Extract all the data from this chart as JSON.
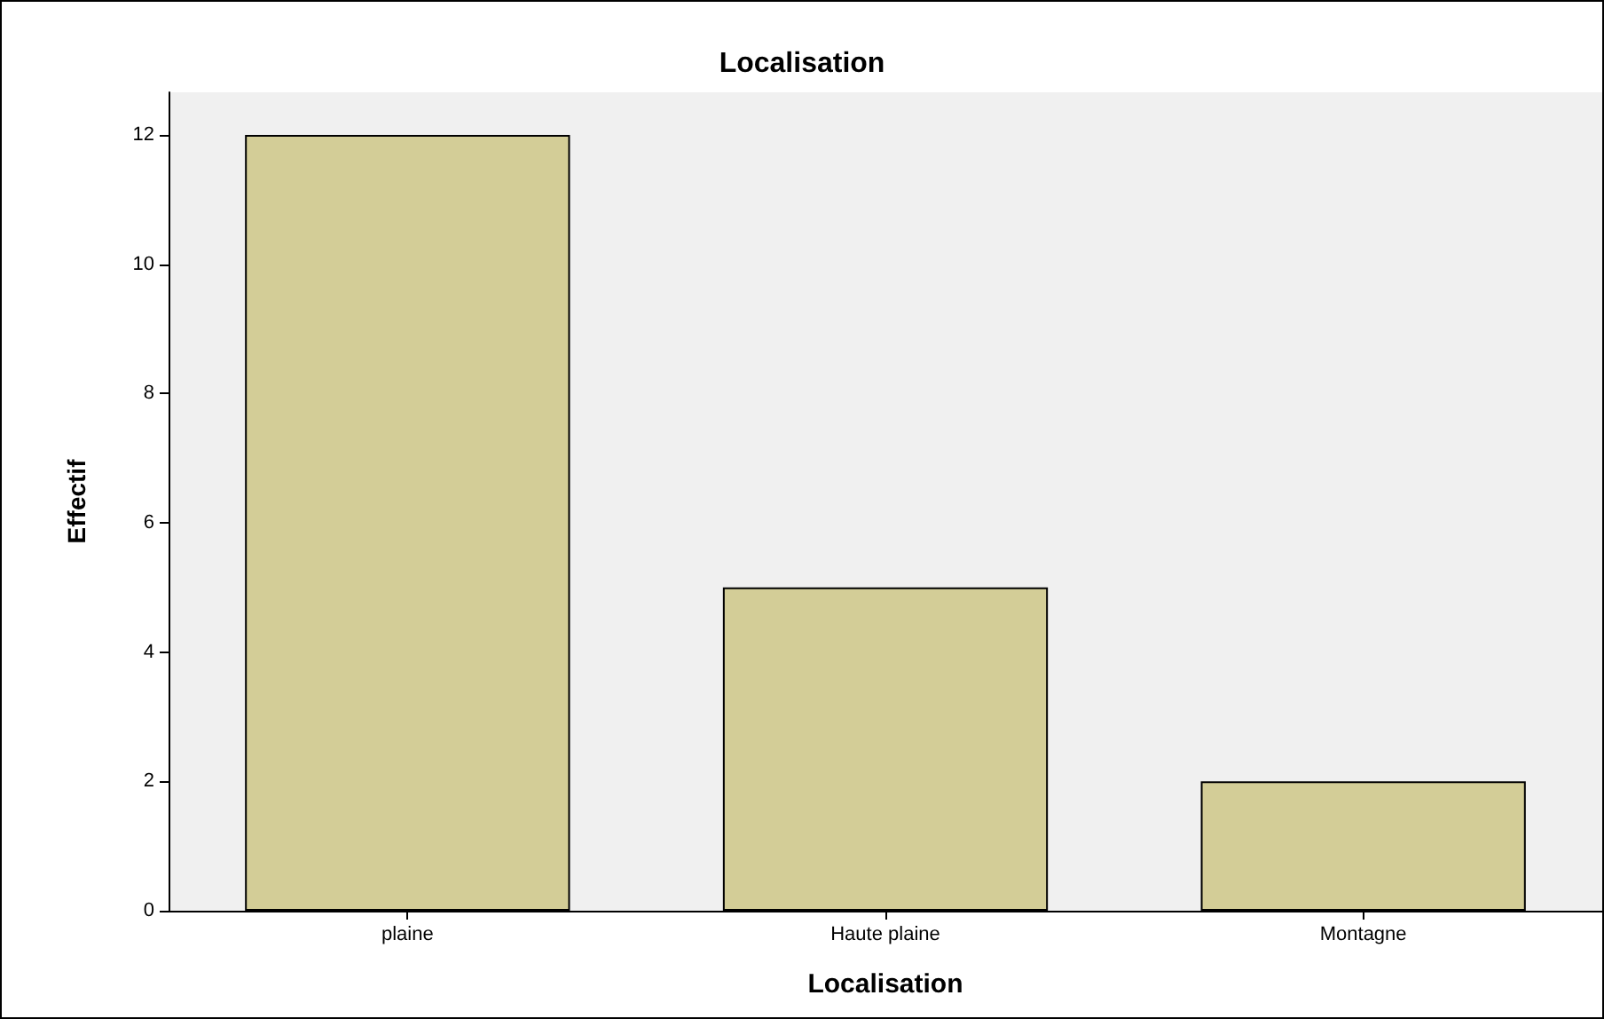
{
  "chart_data": {
    "type": "bar",
    "title": "Localisation",
    "xlabel": "Localisation",
    "ylabel": "Effectif",
    "categories": [
      "plaine",
      "Haute plaine",
      "Montagne"
    ],
    "values": [
      12,
      5,
      2
    ],
    "color": "#d3cd97",
    "ylim": [
      0,
      12.66
    ],
    "yticks": [
      0,
      2,
      4,
      6,
      8,
      10,
      12
    ],
    "grid": false
  }
}
